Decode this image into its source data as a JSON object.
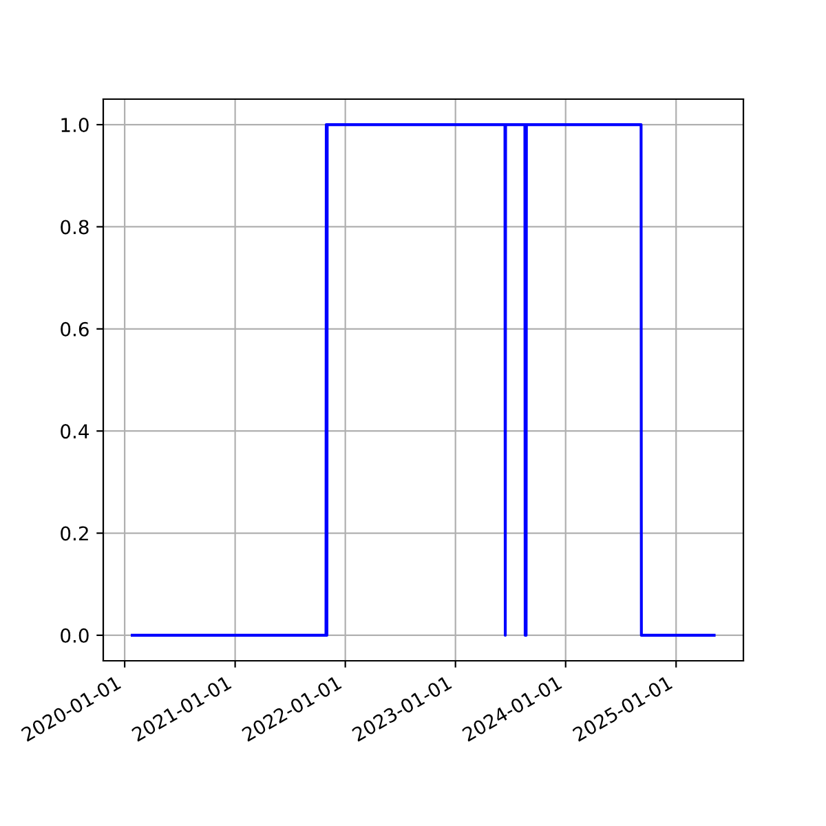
{
  "chart_data": {
    "type": "line",
    "x": [
      "2020-01-26",
      "2021-10-29",
      "2021-10-30",
      "2021-11-01",
      "2021-11-02",
      "2023-06-14",
      "2023-06-15",
      "2023-06-16",
      "2023-08-19",
      "2023-08-20",
      "2023-08-21",
      "2023-08-23",
      "2023-08-24",
      "2024-09-07",
      "2024-09-08",
      "2025-05-07"
    ],
    "series": [
      {
        "color": "#0000ff",
        "values": [
          0,
          0,
          1,
          0,
          1,
          1,
          0,
          1,
          1,
          0,
          1,
          0,
          1,
          1,
          0,
          0
        ]
      }
    ],
    "xlim": [
      "2019-10-22",
      "2025-08-12"
    ],
    "xticks": [
      "2020-01-01",
      "2021-01-01",
      "2022-01-01",
      "2023-01-01",
      "2024-01-01",
      "2025-01-01"
    ],
    "ylim": [
      -0.05,
      1.05
    ],
    "yticks": [
      {
        "value": 0,
        "label": "0.0"
      },
      {
        "value": 0.2,
        "label": "0.2"
      },
      {
        "value": 0.4,
        "label": "0.4"
      },
      {
        "value": 0.6,
        "label": "0.6"
      },
      {
        "value": 0.8,
        "label": "0.8"
      },
      {
        "value": 1,
        "label": "1.0"
      }
    ],
    "grid": true,
    "marker": "none",
    "line_style": "solid"
  }
}
